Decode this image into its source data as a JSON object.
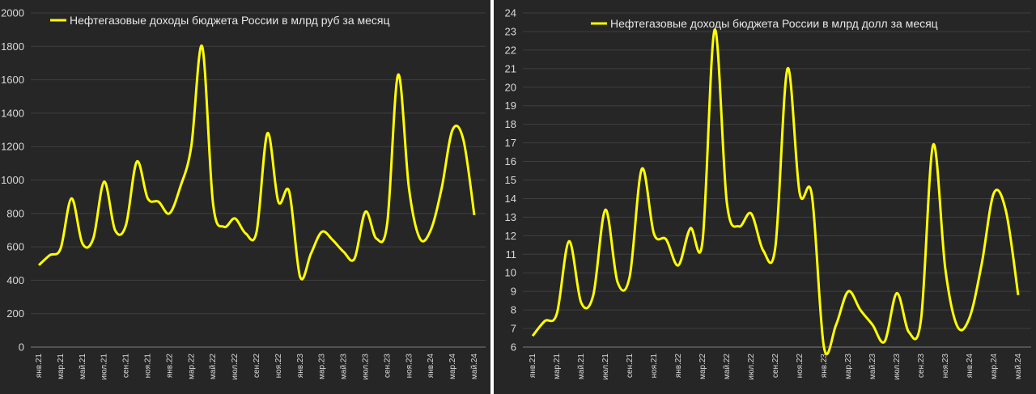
{
  "chart_data": [
    {
      "type": "line",
      "legend": "Нефтегазовые доходы бюджета России в млрд руб за месяц",
      "legend_position": "top",
      "smooth": true,
      "grid": true,
      "color": "#ffff00",
      "ylim": [
        0,
        2000
      ],
      "yticks": [
        0,
        200,
        400,
        600,
        800,
        1000,
        1200,
        1400,
        1600,
        1800,
        2000
      ],
      "xtick_labels": [
        "янв.21",
        "мар.21",
        "май.21",
        "июл.21",
        "сен.21",
        "ноя.21",
        "янв.22",
        "мар.22",
        "май.22",
        "июл.22",
        "сен.22",
        "ноя.22",
        "янв.23",
        "мар.23",
        "май.23",
        "июл.23",
        "сен.23",
        "ноя.23",
        "янв.24",
        "мар.24",
        "май.24"
      ],
      "x": [
        "янв.21",
        "фев.21",
        "мар.21",
        "апр.21",
        "май.21",
        "июн.21",
        "июл.21",
        "авг.21",
        "сен.21",
        "окт.21",
        "ноя.21",
        "дек.21",
        "янв.22",
        "фев.22",
        "мар.22",
        "апр.22",
        "май.22",
        "июн.22",
        "июл.22",
        "авг.22",
        "сен.22",
        "окт.22",
        "ноя.22",
        "дек.22",
        "янв.23",
        "фев.23",
        "мар.23",
        "апр.23",
        "май.23",
        "июн.23",
        "июл.23",
        "авг.23",
        "сен.23",
        "окт.23",
        "ноя.23",
        "дек.23",
        "янв.24",
        "фев.24",
        "мар.24",
        "апр.24",
        "май.24"
      ],
      "values": [
        490,
        550,
        590,
        890,
        620,
        650,
        990,
        700,
        730,
        1110,
        890,
        870,
        800,
        960,
        1200,
        1800,
        860,
        720,
        770,
        680,
        690,
        1280,
        870,
        930,
        420,
        560,
        690,
        640,
        570,
        530,
        810,
        650,
        740,
        1630,
        950,
        650,
        700,
        950,
        1300,
        1240,
        790
      ]
    },
    {
      "type": "line",
      "legend": "Нефтегазовые доходы бюджета России в млрд долл за месяц",
      "legend_position": "top",
      "smooth": true,
      "grid": true,
      "color": "#ffff00",
      "ylim": [
        6,
        24
      ],
      "yticks": [
        6,
        7,
        8,
        9,
        10,
        11,
        12,
        13,
        14,
        15,
        16,
        17,
        18,
        19,
        20,
        21,
        22,
        23,
        24
      ],
      "xtick_labels": [
        "янв.21",
        "мар.21",
        "май.21",
        "июл.21",
        "сен.21",
        "ноя.21",
        "янв.22",
        "мар.22",
        "май.22",
        "июл.22",
        "сен.22",
        "ноя.22",
        "янв.23",
        "мар.23",
        "май.23",
        "июл.23",
        "сен.23",
        "ноя.23",
        "янв.24",
        "мар.24",
        "май.24"
      ],
      "x": [
        "янв.21",
        "фев.21",
        "мар.21",
        "апр.21",
        "май.21",
        "июн.21",
        "июл.21",
        "авг.21",
        "сен.21",
        "окт.21",
        "ноя.21",
        "дек.21",
        "янв.22",
        "фев.22",
        "мар.22",
        "апр.22",
        "май.22",
        "июн.22",
        "июл.22",
        "авг.22",
        "сен.22",
        "окт.22",
        "ноя.22",
        "дек.22",
        "янв.23",
        "фев.23",
        "мар.23",
        "апр.23",
        "май.23",
        "июн.23",
        "июл.23",
        "авг.23",
        "сен.23",
        "окт.23",
        "ноя.23",
        "дек.23",
        "янв.24",
        "фев.24",
        "мар.24",
        "апр.24",
        "май.24"
      ],
      "values": [
        6.6,
        7.4,
        7.8,
        11.7,
        8.4,
        8.8,
        13.4,
        9.5,
        9.8,
        15.6,
        12.1,
        11.8,
        10.4,
        12.4,
        11.7,
        23.1,
        13.8,
        12.5,
        13.2,
        11.2,
        11.4,
        21.0,
        14.3,
        14.2,
        6.0,
        7.2,
        9.0,
        8.0,
        7.2,
        6.3,
        8.9,
        6.8,
        7.5,
        16.9,
        10.2,
        7.1,
        7.6,
        10.5,
        14.3,
        13.3,
        8.8
      ]
    }
  ]
}
